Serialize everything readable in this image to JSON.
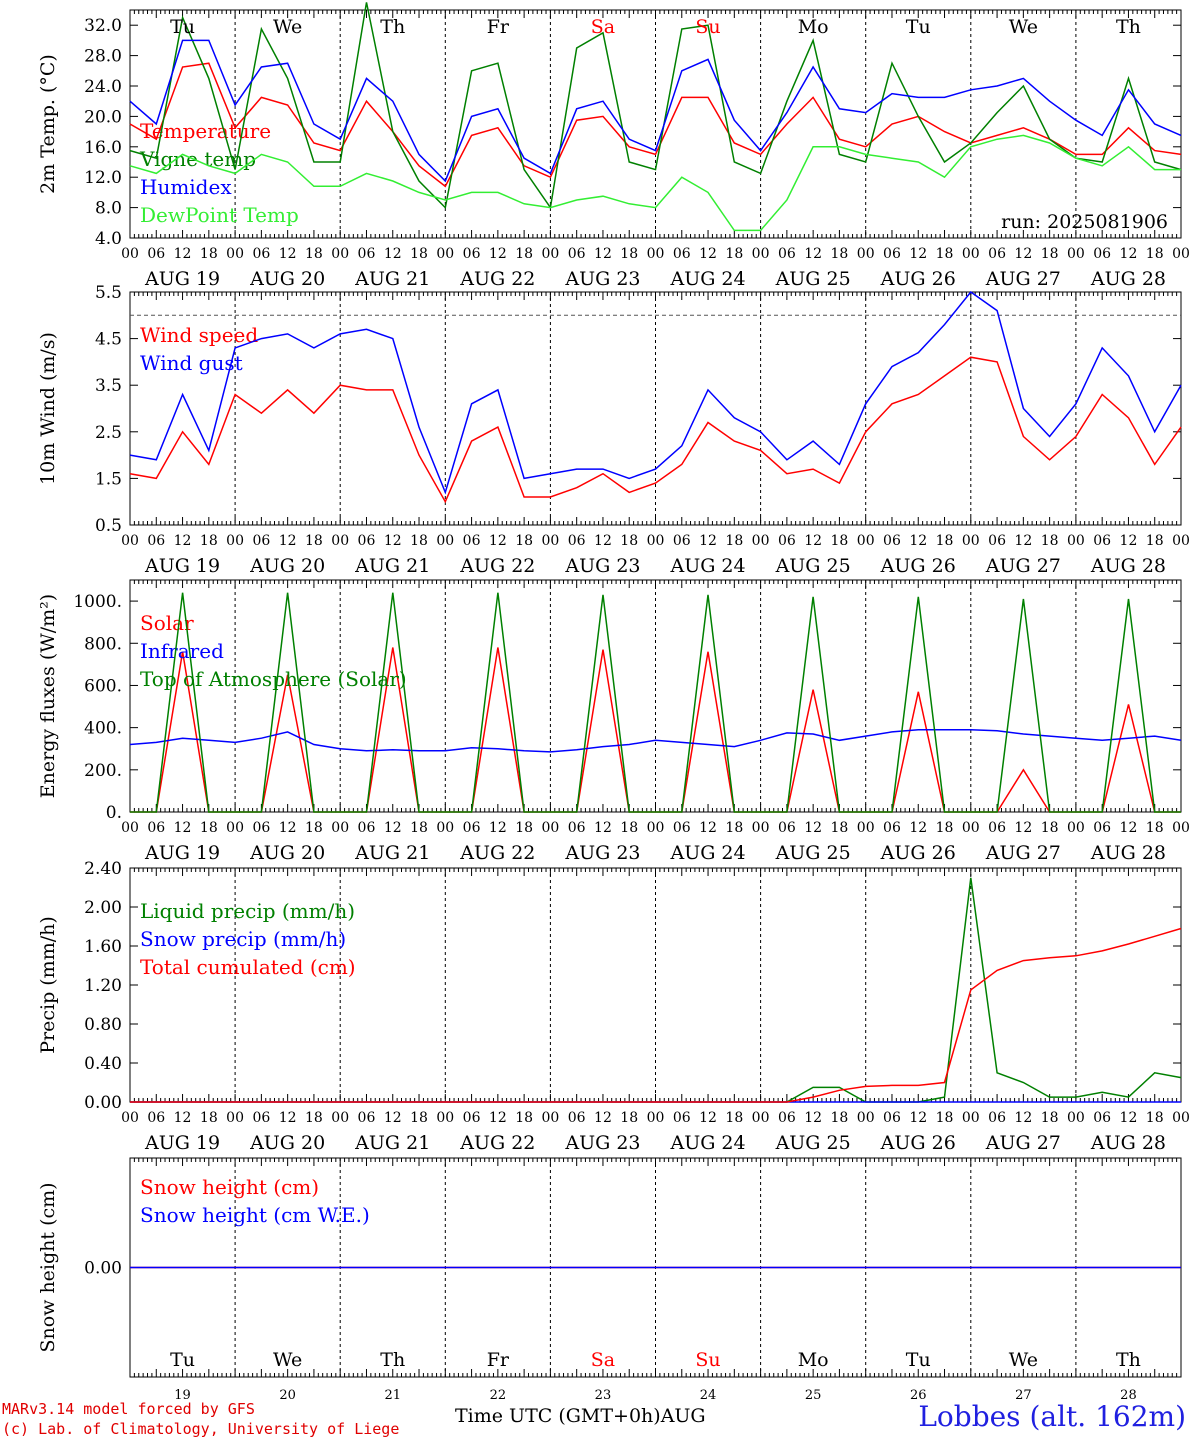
{
  "run_label": "run: 2025081906",
  "footer": {
    "credit_line1": "MARv3.14 model forced by GFS",
    "credit_line2": "(c) Lab. of Climatology, University of Liege",
    "station": "Lobbes (alt. 162m)",
    "x_title": "Time UTC (GMT+0h)",
    "month": "AUG"
  },
  "hour_ticks": [
    "00",
    "06",
    "12",
    "18"
  ],
  "date_labels": [
    "AUG 19",
    "AUG 20",
    "AUG 21",
    "AUG 22",
    "AUG 23",
    "AUG 24",
    "AUG 25",
    "AUG 26",
    "AUG 27",
    "AUG 28"
  ],
  "day_names": [
    "Tu",
    "We",
    "Th",
    "Fr",
    "Sa",
    "Su",
    "Mo",
    "Tu",
    "We",
    "Th"
  ],
  "weekend_flags": [
    false,
    false,
    false,
    false,
    true,
    true,
    false,
    false,
    false,
    false
  ],
  "day_numbers": [
    "19",
    "20",
    "21",
    "22",
    "23",
    "24",
    "25",
    "26",
    "27",
    "28"
  ],
  "colors": {
    "red": "#ff0000",
    "green": "#008000",
    "blue": "#0000ff",
    "lightgreen": "#33ee33",
    "axis": "#000000",
    "weekend": "#ff0000"
  },
  "chart_data": [
    {
      "type": "line",
      "ylabel": "2m Temp. (°C)",
      "ylim": [
        4.0,
        34.0
      ],
      "y_ticks": [
        "4.0",
        "8.0",
        "12.0",
        "16.0",
        "20.0",
        "24.0",
        "28.0",
        "32.0"
      ],
      "x_hours": [
        0,
        6,
        12,
        18,
        24,
        30,
        36,
        42,
        48,
        54,
        60,
        66,
        72,
        78,
        84,
        90,
        96,
        102,
        108,
        114,
        120,
        126,
        132,
        138,
        144,
        150,
        156,
        162,
        168,
        174,
        180,
        186,
        192,
        198,
        204,
        210,
        216,
        222,
        228,
        234,
        240
      ],
      "series": [
        {
          "name": "Temperature",
          "color": "red",
          "values": [
            19.0,
            17.0,
            26.5,
            27.0,
            18.5,
            22.5,
            21.5,
            16.5,
            15.5,
            22.0,
            18.0,
            13.5,
            10.8,
            17.5,
            18.5,
            13.5,
            12.0,
            19.5,
            20.0,
            16.0,
            15.0,
            22.5,
            22.5,
            16.5,
            15.0,
            19.0,
            22.5,
            17.0,
            16.0,
            19.0,
            20.0,
            18.0,
            16.5,
            17.5,
            18.5,
            17.0,
            15.0,
            15.0,
            18.5,
            15.5,
            15.0
          ]
        },
        {
          "name": "Vigne temp",
          "color": "green",
          "values": [
            15.5,
            14.5,
            33.0,
            25.0,
            13.0,
            31.5,
            25.0,
            14.0,
            14.0,
            35.0,
            18.0,
            11.5,
            8.0,
            26.0,
            27.0,
            13.0,
            8.0,
            29.0,
            31.0,
            14.0,
            13.0,
            31.5,
            32.0,
            14.0,
            12.5,
            22.0,
            30.0,
            15.0,
            14.0,
            27.0,
            20.0,
            14.0,
            16.5,
            20.5,
            24.0,
            17.0,
            14.5,
            14.0,
            25.0,
            14.0,
            13.0
          ]
        },
        {
          "name": "Humidex",
          "color": "blue",
          "values": [
            22.0,
            19.0,
            30.0,
            30.0,
            21.5,
            26.5,
            27.0,
            19.0,
            17.0,
            25.0,
            22.0,
            15.0,
            11.5,
            20.0,
            21.0,
            14.5,
            12.5,
            21.0,
            22.0,
            17.0,
            15.5,
            26.0,
            27.5,
            19.5,
            15.5,
            20.5,
            26.5,
            21.0,
            20.5,
            23.0,
            22.5,
            22.5,
            23.5,
            24.0,
            25.0,
            22.0,
            19.5,
            17.5,
            23.5,
            19.0,
            17.5
          ]
        },
        {
          "name": "DewPoint Temp",
          "color": "lightgreen",
          "values": [
            13.5,
            12.5,
            15.0,
            13.5,
            12.5,
            15.0,
            14.0,
            10.8,
            10.8,
            12.5,
            11.5,
            10.0,
            9.0,
            10.0,
            10.0,
            8.5,
            8.0,
            9.0,
            9.5,
            8.5,
            8.0,
            12.0,
            10.0,
            5.0,
            5.0,
            9.0,
            16.0,
            16.0,
            15.0,
            14.5,
            14.0,
            12.0,
            16.0,
            17.0,
            17.5,
            16.5,
            14.5,
            13.5,
            16.0,
            13.0,
            13.0
          ]
        }
      ],
      "legend_position": "top-left"
    },
    {
      "type": "line",
      "ylabel": "10m Wind (m/s)",
      "ylim": [
        0.5,
        5.5
      ],
      "y_ticks": [
        "0.5",
        "1.5",
        "2.5",
        "3.5",
        "4.5",
        "5.5"
      ],
      "reference_line": 5.0,
      "x_hours": [
        0,
        6,
        12,
        18,
        24,
        30,
        36,
        42,
        48,
        54,
        60,
        66,
        72,
        78,
        84,
        90,
        96,
        102,
        108,
        114,
        120,
        126,
        132,
        138,
        144,
        150,
        156,
        162,
        168,
        174,
        180,
        186,
        192,
        198,
        204,
        210,
        216,
        222,
        228,
        234,
        240
      ],
      "series": [
        {
          "name": "Wind speed",
          "color": "red",
          "values": [
            1.6,
            1.5,
            2.5,
            1.8,
            3.3,
            2.9,
            3.4,
            2.9,
            3.5,
            3.4,
            3.4,
            2.0,
            1.0,
            2.3,
            2.6,
            1.1,
            1.1,
            1.3,
            1.6,
            1.2,
            1.4,
            1.8,
            2.7,
            2.3,
            2.1,
            1.6,
            1.7,
            1.4,
            2.5,
            3.1,
            3.3,
            3.7,
            4.1,
            4.0,
            2.4,
            1.9,
            2.4,
            3.3,
            2.8,
            1.8,
            2.6
          ]
        },
        {
          "name": "Wind gust",
          "color": "blue",
          "values": [
            2.0,
            1.9,
            3.3,
            2.1,
            4.3,
            4.5,
            4.6,
            4.3,
            4.6,
            4.7,
            4.5,
            2.6,
            1.2,
            3.1,
            3.4,
            1.5,
            1.6,
            1.7,
            1.7,
            1.5,
            1.7,
            2.2,
            3.4,
            2.8,
            2.5,
            1.9,
            2.3,
            1.8,
            3.1,
            3.9,
            4.2,
            4.8,
            5.5,
            5.1,
            3.0,
            2.4,
            3.1,
            4.3,
            3.7,
            2.5,
            3.5
          ]
        }
      ],
      "legend_position": "top-left"
    },
    {
      "type": "line",
      "ylabel": "Energy fluxes (W/m²)",
      "ylim": [
        0,
        1100
      ],
      "y_ticks": [
        "0.",
        "200.",
        "400.",
        "600.",
        "800.",
        "1000."
      ],
      "x_hours": [
        0,
        6,
        12,
        18,
        24,
        30,
        36,
        42,
        48,
        54,
        60,
        66,
        72,
        78,
        84,
        90,
        96,
        102,
        108,
        114,
        120,
        126,
        132,
        138,
        144,
        150,
        156,
        162,
        168,
        174,
        180,
        186,
        192,
        198,
        204,
        210,
        216,
        222,
        228,
        234,
        240
      ],
      "series": [
        {
          "name": "Solar",
          "color": "red",
          "values": [
            0,
            0,
            760,
            0,
            0,
            0,
            650,
            0,
            0,
            0,
            780,
            0,
            0,
            0,
            780,
            0,
            0,
            0,
            770,
            0,
            0,
            0,
            760,
            0,
            0,
            0,
            580,
            0,
            0,
            0,
            570,
            0,
            0,
            0,
            200,
            0,
            0,
            0,
            510,
            0,
            0
          ]
        },
        {
          "name": "Infrared",
          "color": "blue",
          "values": [
            320,
            330,
            350,
            340,
            330,
            350,
            380,
            320,
            300,
            290,
            295,
            290,
            290,
            305,
            300,
            290,
            285,
            295,
            310,
            320,
            340,
            330,
            320,
            310,
            340,
            375,
            370,
            340,
            360,
            380,
            390,
            390,
            390,
            385,
            370,
            360,
            350,
            340,
            350,
            360,
            340
          ]
        },
        {
          "name": "Top of Atmosphere (Solar)",
          "color": "green",
          "values": [
            0,
            0,
            1040,
            0,
            0,
            0,
            1040,
            0,
            0,
            0,
            1040,
            0,
            0,
            0,
            1040,
            0,
            0,
            0,
            1030,
            0,
            0,
            0,
            1030,
            0,
            0,
            0,
            1020,
            0,
            0,
            0,
            1020,
            0,
            0,
            0,
            1010,
            0,
            0,
            0,
            1010,
            0,
            0
          ]
        }
      ],
      "legend_position": "top-left"
    },
    {
      "type": "line",
      "ylabel": "Precip (mm/h)",
      "ylim": [
        0.0,
        2.4
      ],
      "y_ticks": [
        "0.00",
        "0.40",
        "0.80",
        "1.20",
        "1.60",
        "2.00",
        "2.40"
      ],
      "x_hours": [
        0,
        6,
        12,
        18,
        24,
        30,
        36,
        42,
        48,
        54,
        60,
        66,
        72,
        78,
        84,
        90,
        96,
        102,
        108,
        114,
        120,
        126,
        132,
        138,
        144,
        150,
        156,
        162,
        168,
        174,
        180,
        186,
        192,
        198,
        204,
        210,
        216,
        222,
        228,
        234,
        240
      ],
      "series": [
        {
          "name": "Liquid precip (mm/h)",
          "color": "green",
          "values": [
            0,
            0,
            0,
            0,
            0,
            0,
            0,
            0,
            0,
            0,
            0,
            0,
            0,
            0,
            0,
            0,
            0,
            0,
            0,
            0,
            0,
            0,
            0,
            0,
            0,
            0,
            0.15,
            0.15,
            0.0,
            0.0,
            0.0,
            0.05,
            2.3,
            0.3,
            0.2,
            0.05,
            0.05,
            0.1,
            0.05,
            0.3,
            0.25
          ]
        },
        {
          "name": "Snow precip (mm/h)",
          "color": "blue",
          "values": [
            0,
            0,
            0,
            0,
            0,
            0,
            0,
            0,
            0,
            0,
            0,
            0,
            0,
            0,
            0,
            0,
            0,
            0,
            0,
            0,
            0,
            0,
            0,
            0,
            0,
            0,
            0,
            0,
            0,
            0,
            0,
            0,
            0,
            0,
            0,
            0,
            0,
            0,
            0,
            0,
            0
          ]
        },
        {
          "name": "Total cumulated (cm)",
          "color": "red",
          "values": [
            0,
            0,
            0,
            0,
            0,
            0,
            0,
            0,
            0,
            0,
            0,
            0,
            0,
            0,
            0,
            0,
            0,
            0,
            0,
            0,
            0,
            0,
            0,
            0,
            0,
            0,
            0.05,
            0.12,
            0.16,
            0.17,
            0.17,
            0.2,
            1.15,
            1.35,
            1.45,
            1.48,
            1.5,
            1.55,
            1.62,
            1.7,
            1.78
          ]
        }
      ],
      "legend_position": "top-left"
    },
    {
      "type": "line",
      "ylabel": "Snow height (cm)",
      "y_ticks": [
        "0.00"
      ],
      "series": [
        {
          "name": "Snow height (cm)",
          "color": "red",
          "values": [
            0,
            0
          ]
        },
        {
          "name": "Snow height (cm W.E.)",
          "color": "blue",
          "values": [
            0,
            0
          ]
        }
      ],
      "legend_position": "top-left"
    }
  ]
}
